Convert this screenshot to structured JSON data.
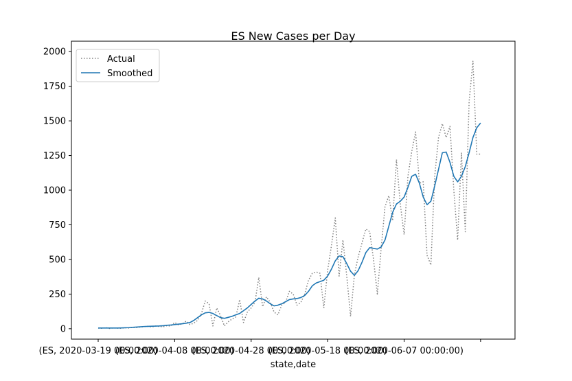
{
  "chart_data": {
    "type": "line",
    "title": "ES New Cases per Day",
    "xlabel": "state,date",
    "ylabel": "",
    "ylim": [
      -75,
      2075
    ],
    "xlim": [
      -7,
      109
    ],
    "y_ticks": [
      0,
      250,
      500,
      750,
      1000,
      1250,
      1500,
      1750,
      2000
    ],
    "x_ticks": [
      {
        "pos": 0,
        "label": "(ES, 2020-03-19 00:00:00)"
      },
      {
        "pos": 20,
        "label": "(ES, 2020-04-08 00:00:00)"
      },
      {
        "pos": 40,
        "label": "(ES, 2020-04-28 00:00:00)"
      },
      {
        "pos": 60,
        "label": "(ES, 2020-05-18 00:00:00)"
      },
      {
        "pos": 80,
        "label": "(ES, 2020-06-07 00:00:00)"
      },
      {
        "pos": 100,
        "label": ""
      }
    ],
    "legend": {
      "position": "upper-left"
    },
    "grid": false,
    "series": [
      {
        "name": "Actual",
        "style": "dotted",
        "color": "#808080",
        "x": [
          0,
          1,
          2,
          3,
          4,
          5,
          6,
          7,
          8,
          9,
          10,
          11,
          12,
          13,
          14,
          15,
          16,
          17,
          18,
          19,
          20,
          21,
          22,
          23,
          24,
          25,
          26,
          27,
          28,
          29,
          30,
          31,
          32,
          33,
          34,
          35,
          36,
          37,
          38,
          39,
          40,
          41,
          42,
          43,
          44,
          45,
          46,
          47,
          48,
          49,
          50,
          51,
          52,
          53,
          54,
          55,
          56,
          57,
          58,
          59,
          60,
          61,
          62,
          63,
          64,
          65,
          66,
          67,
          68,
          69,
          70,
          71,
          72,
          73,
          74,
          75,
          76,
          77,
          78,
          79,
          80,
          81,
          82,
          83,
          84,
          85,
          86,
          87,
          88,
          89,
          90,
          91,
          92,
          93,
          94,
          95,
          96,
          97,
          98,
          99,
          100
        ],
        "y": [
          5,
          3,
          8,
          2,
          6,
          4,
          3,
          7,
          5,
          9,
          8,
          12,
          15,
          18,
          12,
          20,
          16,
          14,
          22,
          19,
          45,
          28,
          35,
          55,
          30,
          40,
          60,
          110,
          200,
          180,
          20,
          150,
          95,
          20,
          50,
          70,
          85,
          210,
          45,
          120,
          150,
          190,
          370,
          160,
          230,
          190,
          120,
          100,
          170,
          190,
          270,
          250,
          170,
          190,
          250,
          350,
          400,
          410,
          400,
          150,
          420,
          600,
          800,
          380,
          640,
          380,
          90,
          390,
          520,
          620,
          720,
          700,
          500,
          250,
          580,
          880,
          960,
          780,
          1220,
          900,
          680,
          1100,
          1280,
          1420,
          1050,
          1060,
          530,
          460,
          1100,
          1380,
          1480,
          1380,
          1460,
          1000,
          640,
          1270,
          700,
          1640,
          1930,
          1260,
          1260
        ]
      },
      {
        "name": "Smoothed",
        "style": "solid",
        "color": "#1f77b4",
        "x": [
          0,
          1,
          2,
          3,
          4,
          5,
          6,
          7,
          8,
          9,
          10,
          11,
          12,
          13,
          14,
          15,
          16,
          17,
          18,
          19,
          20,
          21,
          22,
          23,
          24,
          25,
          26,
          27,
          28,
          29,
          30,
          31,
          32,
          33,
          34,
          35,
          36,
          37,
          38,
          39,
          40,
          41,
          42,
          43,
          44,
          45,
          46,
          47,
          48,
          49,
          50,
          51,
          52,
          53,
          54,
          55,
          56,
          57,
          58,
          59,
          60,
          61,
          62,
          63,
          64,
          65,
          66,
          67,
          68,
          69,
          70,
          71,
          72,
          73,
          74,
          75,
          76,
          77,
          78,
          79,
          80,
          81,
          82,
          83,
          84,
          85,
          86,
          87,
          88,
          89,
          90,
          91,
          92,
          93,
          94,
          95,
          96,
          97,
          98,
          99,
          100
        ],
        "y": [
          5,
          5,
          5,
          5,
          5,
          5,
          6,
          7,
          8,
          10,
          12,
          14,
          16,
          17,
          18,
          19,
          20,
          22,
          25,
          27,
          30,
          33,
          36,
          40,
          45,
          60,
          80,
          100,
          115,
          118,
          110,
          95,
          80,
          75,
          82,
          90,
          100,
          110,
          130,
          150,
          175,
          200,
          220,
          215,
          200,
          180,
          165,
          170,
          180,
          195,
          210,
          215,
          218,
          225,
          240,
          270,
          310,
          330,
          340,
          350,
          380,
          430,
          490,
          525,
          520,
          470,
          415,
          385,
          420,
          480,
          550,
          585,
          580,
          575,
          590,
          640,
          740,
          840,
          900,
          920,
          950,
          1020,
          1100,
          1115,
          1050,
          950,
          895,
          920,
          1030,
          1150,
          1270,
          1275,
          1200,
          1100,
          1060,
          1100,
          1170,
          1270,
          1380,
          1450,
          1485
        ]
      }
    ]
  }
}
